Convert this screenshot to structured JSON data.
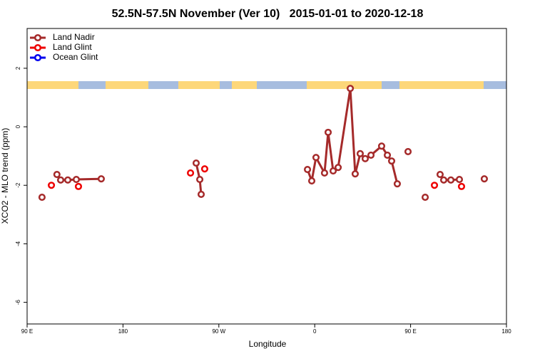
{
  "chart_data": {
    "type": "line",
    "title": "52.5N-57.5N November (Ver 10)   2015-01-01 to 2020-12-18",
    "x_label": "Longitude",
    "y_label": "XCO2 - MLO trend (ppm)",
    "xlim": [
      -270,
      180
    ],
    "xticks": [
      {
        "value": -270,
        "label": "90 E"
      },
      {
        "value": -180,
        "label": "180"
      },
      {
        "value": -90,
        "label": "90 W"
      },
      0,
      {
        "value": 90,
        "label": "90 E"
      },
      180
    ],
    "ylim": [
      -6.74,
      3.36
    ],
    "yticks": [
      -6,
      -4,
      -2,
      0,
      2
    ],
    "legend": "top-left",
    "series": [
      {
        "name": "Land Nadir",
        "color": "#a52a2a",
        "x": [
          -256,
          null,
          -242,
          -238.5,
          -231.8,
          -223.8,
          -200.4,
          null,
          -111.3,
          -107.9,
          -106.6,
          null,
          -6.8,
          -2.8,
          1.2,
          9.2,
          12.6,
          17.3,
          22,
          33.4,
          38,
          42.7,
          47.4,
          52.8,
          62.8,
          68.2,
          72.2,
          77.5,
          null,
          87.6,
          null,
          103.7,
          null,
          117.7,
          121.1,
          127.8,
          135.8,
          null,
          159.2
        ],
        "values": [
          -2.41,
          null,
          -1.63,
          -1.82,
          -1.82,
          -1.8,
          -1.78,
          null,
          -1.24,
          -1.8,
          -2.31,
          null,
          -1.46,
          -1.85,
          -1.05,
          -1.58,
          -0.19,
          -1.51,
          -1.39,
          1.31,
          -1.61,
          -0.92,
          -1.09,
          -0.97,
          -0.66,
          -0.97,
          -1.17,
          -1.95,
          null,
          -0.85,
          null,
          -2.41,
          null,
          -1.63,
          -1.82,
          -1.82,
          -1.8,
          null,
          -1.78
        ]
      },
      {
        "name": "Land Glint",
        "color": "#ee0000",
        "x": [
          -247.2,
          null,
          -221.8,
          null,
          -116.6,
          null,
          -103.3,
          null,
          112.4,
          null,
          137.8
        ],
        "values": [
          -2.0,
          null,
          -2.04,
          null,
          -1.58,
          null,
          -1.44,
          null,
          -2.0,
          null,
          -2.04
        ]
      },
      {
        "name": "Ocean Glint",
        "color": "#0000ee",
        "x": [],
        "values": []
      }
    ]
  }
}
